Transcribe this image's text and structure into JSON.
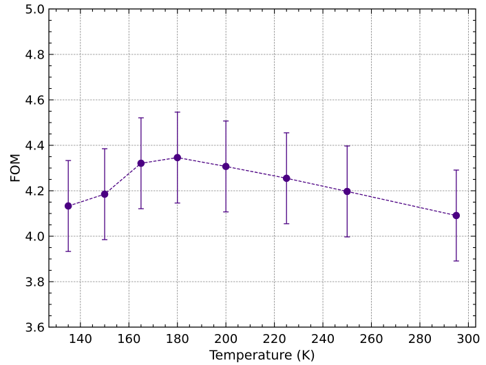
{
  "chart_data": {
    "type": "line",
    "title": "",
    "xlabel": "Temperature (K)",
    "ylabel": "FOM",
    "xlim": [
      127,
      303
    ],
    "ylim": [
      3.6,
      5.0
    ],
    "xticks": [
      140,
      160,
      180,
      200,
      220,
      240,
      260,
      280,
      300
    ],
    "xtick_labels": [
      "140",
      "160",
      "180",
      "200",
      "220",
      "240",
      "260",
      "280",
      "300"
    ],
    "yticks": [
      3.6,
      3.8,
      4.0,
      4.2,
      4.4,
      4.6,
      4.8,
      5.0
    ],
    "ytick_labels": [
      "3.6",
      "3.8",
      "4.0",
      "4.2",
      "4.4",
      "4.6",
      "4.8",
      "5.0"
    ],
    "grid": true,
    "series": [
      {
        "color": "#4b0082",
        "line_style": "dashed",
        "marker": "circle",
        "x": [
          135,
          150,
          165,
          180,
          200,
          225,
          250,
          295
        ],
        "y": [
          4.133,
          4.185,
          4.321,
          4.346,
          4.307,
          4.255,
          4.197,
          4.091
        ],
        "yerr": [
          0.2,
          0.2,
          0.2,
          0.2,
          0.2,
          0.2,
          0.2,
          0.2
        ]
      }
    ]
  }
}
